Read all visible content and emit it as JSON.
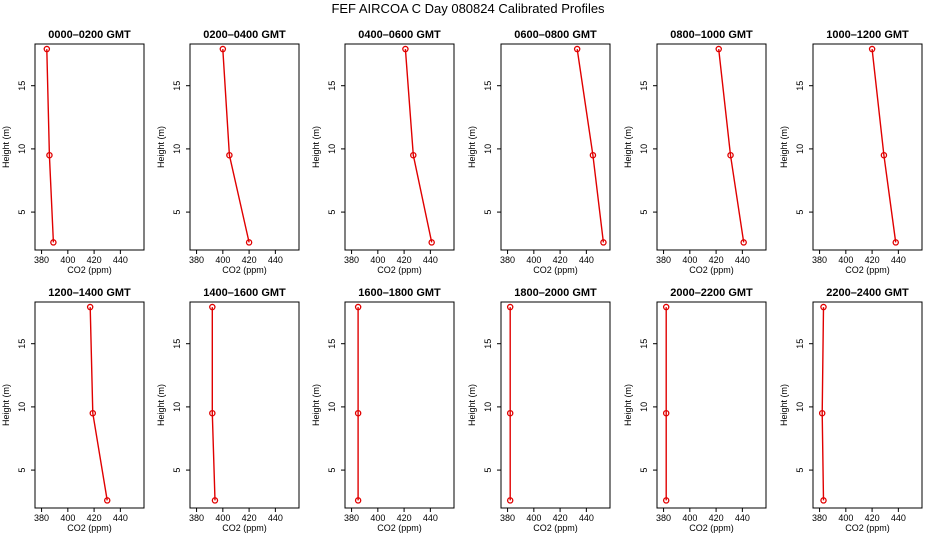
{
  "title": "FEF AIRCOA C  Day 080824  Calibrated Profiles",
  "chart_data": {
    "type": "line",
    "layout": {
      "rows": 2,
      "cols": 6
    },
    "xlabel": "CO2 (ppm)",
    "ylabel": "Height (m)",
    "xlim": [
      375,
      458
    ],
    "ylim": [
      2,
      18.3
    ],
    "xticks": [
      "380",
      "400",
      "420",
      "440"
    ],
    "xtick_values": [
      380,
      400,
      420,
      440
    ],
    "yticks": [
      "5",
      "10",
      "15"
    ],
    "ytick_values": [
      5,
      10,
      15
    ],
    "line_color": "#e00000",
    "marker": "open-circle",
    "panels": [
      {
        "title": "0000–0200 GMT",
        "x": [
          384,
          386,
          389
        ],
        "y": [
          17.9,
          9.5,
          2.6
        ]
      },
      {
        "title": "0200–0400 GMT",
        "x": [
          400,
          405,
          420
        ],
        "y": [
          17.9,
          9.5,
          2.6
        ]
      },
      {
        "title": "0400–0600 GMT",
        "x": [
          421,
          427,
          441
        ],
        "y": [
          17.9,
          9.5,
          2.6
        ]
      },
      {
        "title": "0600–0800 GMT",
        "x": [
          433,
          445,
          453
        ],
        "y": [
          17.9,
          9.5,
          2.6
        ]
      },
      {
        "title": "0800–1000 GMT",
        "x": [
          422,
          431,
          441
        ],
        "y": [
          17.9,
          9.5,
          2.6
        ]
      },
      {
        "title": "1000–1200 GMT",
        "x": [
          420,
          429,
          438
        ],
        "y": [
          17.9,
          9.5,
          2.6
        ]
      },
      {
        "title": "1200–1400 GMT",
        "x": [
          417,
          419,
          430
        ],
        "y": [
          17.9,
          9.5,
          2.6
        ]
      },
      {
        "title": "1400–1600 GMT",
        "x": [
          392,
          392,
          394
        ],
        "y": [
          17.9,
          9.5,
          2.6
        ]
      },
      {
        "title": "1600–1800 GMT",
        "x": [
          385,
          385,
          385
        ],
        "y": [
          17.9,
          9.5,
          2.6
        ]
      },
      {
        "title": "1800–2000 GMT",
        "x": [
          382,
          382,
          382
        ],
        "y": [
          17.9,
          9.5,
          2.6
        ]
      },
      {
        "title": "2000–2200 GMT",
        "x": [
          382,
          382,
          382
        ],
        "y": [
          17.9,
          9.5,
          2.6
        ]
      },
      {
        "title": "2200–2400 GMT",
        "x": [
          383,
          382,
          383
        ],
        "y": [
          17.9,
          9.5,
          2.6
        ]
      }
    ]
  }
}
